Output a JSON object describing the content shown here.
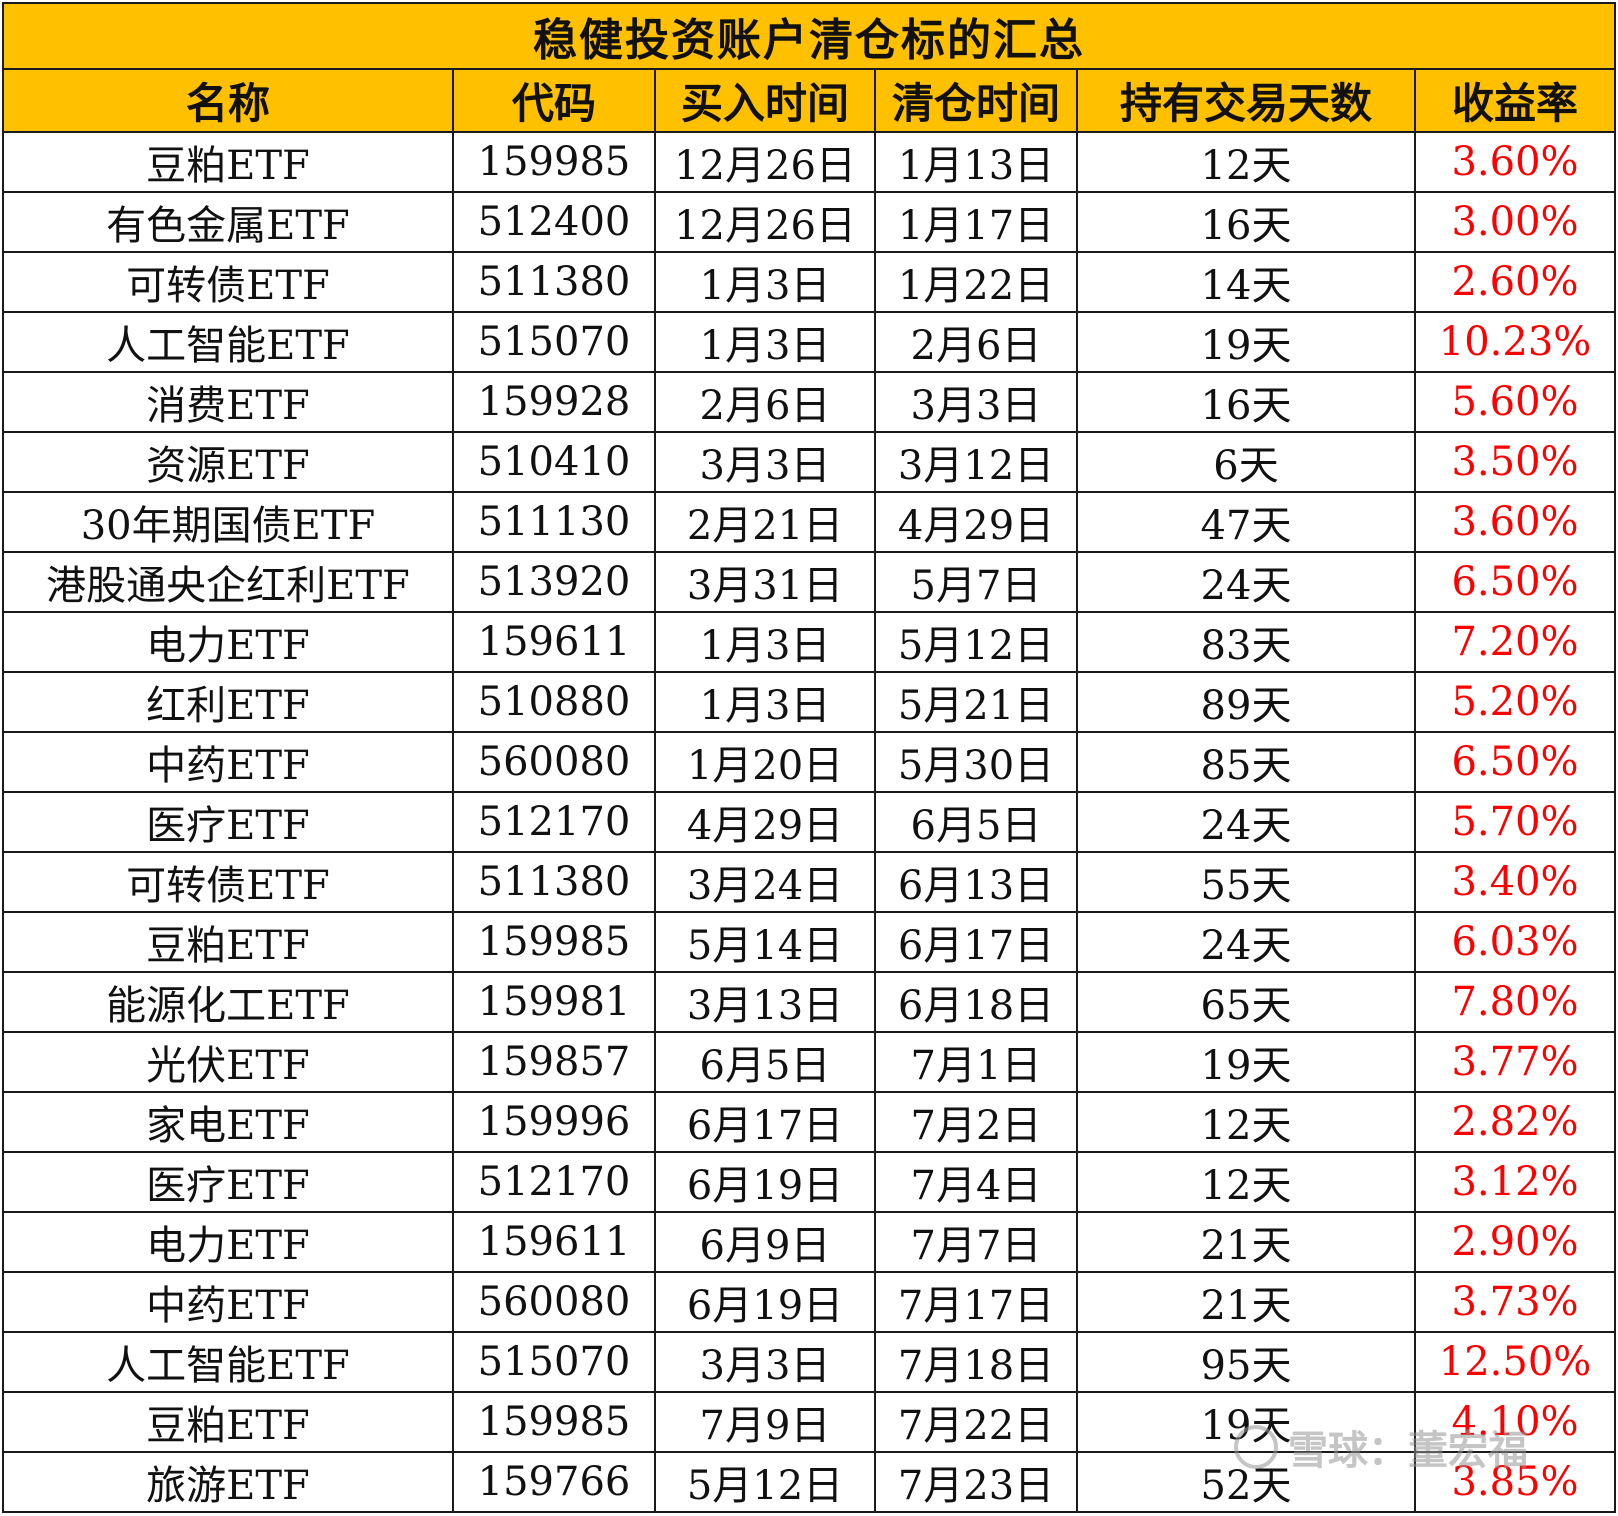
{
  "title": "稳健投资账户清仓标的汇总",
  "headers": [
    "名称",
    "代码",
    "买入时间",
    "清仓时间",
    "持有交易天数",
    "收益率"
  ],
  "rows": [
    [
      "豆粕ETF",
      "159985",
      "12月26日",
      "1月13日",
      "12天",
      "3.60%"
    ],
    [
      "有色金属ETF",
      "512400",
      "12月26日",
      "1月17日",
      "16天",
      "3.00%"
    ],
    [
      "可转债ETF",
      "511380",
      "1月3日",
      "1月22日",
      "14天",
      "2.60%"
    ],
    [
      "人工智能ETF",
      "515070",
      "1月3日",
      "2月6日",
      "19天",
      "10.23%"
    ],
    [
      "消费ETF",
      "159928",
      "2月6日",
      "3月3日",
      "16天",
      "5.60%"
    ],
    [
      "资源ETF",
      "510410",
      "3月3日",
      "3月12日",
      "6天",
      "3.50%"
    ],
    [
      "30年期国债ETF",
      "511130",
      "2月21日",
      "4月29日",
      "47天",
      "3.60%"
    ],
    [
      "港股通央企红利ETF",
      "513920",
      "3月31日",
      "5月7日",
      "24天",
      "6.50%"
    ],
    [
      "电力ETF",
      "159611",
      "1月3日",
      "5月12日",
      "83天",
      "7.20%"
    ],
    [
      "红利ETF",
      "510880",
      "1月3日",
      "5月21日",
      "89天",
      "5.20%"
    ],
    [
      "中药ETF",
      "560080",
      "1月20日",
      "5月30日",
      "85天",
      "6.50%"
    ],
    [
      "医疗ETF",
      "512170",
      "4月29日",
      "6月5日",
      "24天",
      "5.70%"
    ],
    [
      "可转债ETF",
      "511380",
      "3月24日",
      "6月13日",
      "55天",
      "3.40%"
    ],
    [
      "豆粕ETF",
      "159985",
      "5月14日",
      "6月17日",
      "24天",
      "6.03%"
    ],
    [
      "能源化工ETF",
      "159981",
      "3月13日",
      "6月18日",
      "65天",
      "7.80%"
    ],
    [
      "光伏ETF",
      "159857",
      "6月5日",
      "7月1日",
      "19天",
      "3.77%"
    ],
    [
      "家电ETF",
      "159996",
      "6月17日",
      "7月2日",
      "12天",
      "2.82%"
    ],
    [
      "医疗ETF",
      "512170",
      "6月19日",
      "7月4日",
      "12天",
      "3.12%"
    ],
    [
      "电力ETF",
      "159611",
      "6月9日",
      "7月7日",
      "21天",
      "2.90%"
    ],
    [
      "中药ETF",
      "560080",
      "6月19日",
      "7月17日",
      "21天",
      "3.73%"
    ],
    [
      "人工智能ETF",
      "515070",
      "3月3日",
      "7月18日",
      "95天",
      "12.50%"
    ],
    [
      "豆粕ETF",
      "159985",
      "7月9日",
      "7月22日",
      "19天",
      "4.10%"
    ],
    [
      "旅游ETF",
      "159766",
      "5月12日",
      "7月23日",
      "52天",
      "3.85%"
    ]
  ],
  "colors": {
    "header_bg": "#ffc000",
    "rate_text": "#ff0000"
  },
  "watermark": "雪球：董宏福"
}
